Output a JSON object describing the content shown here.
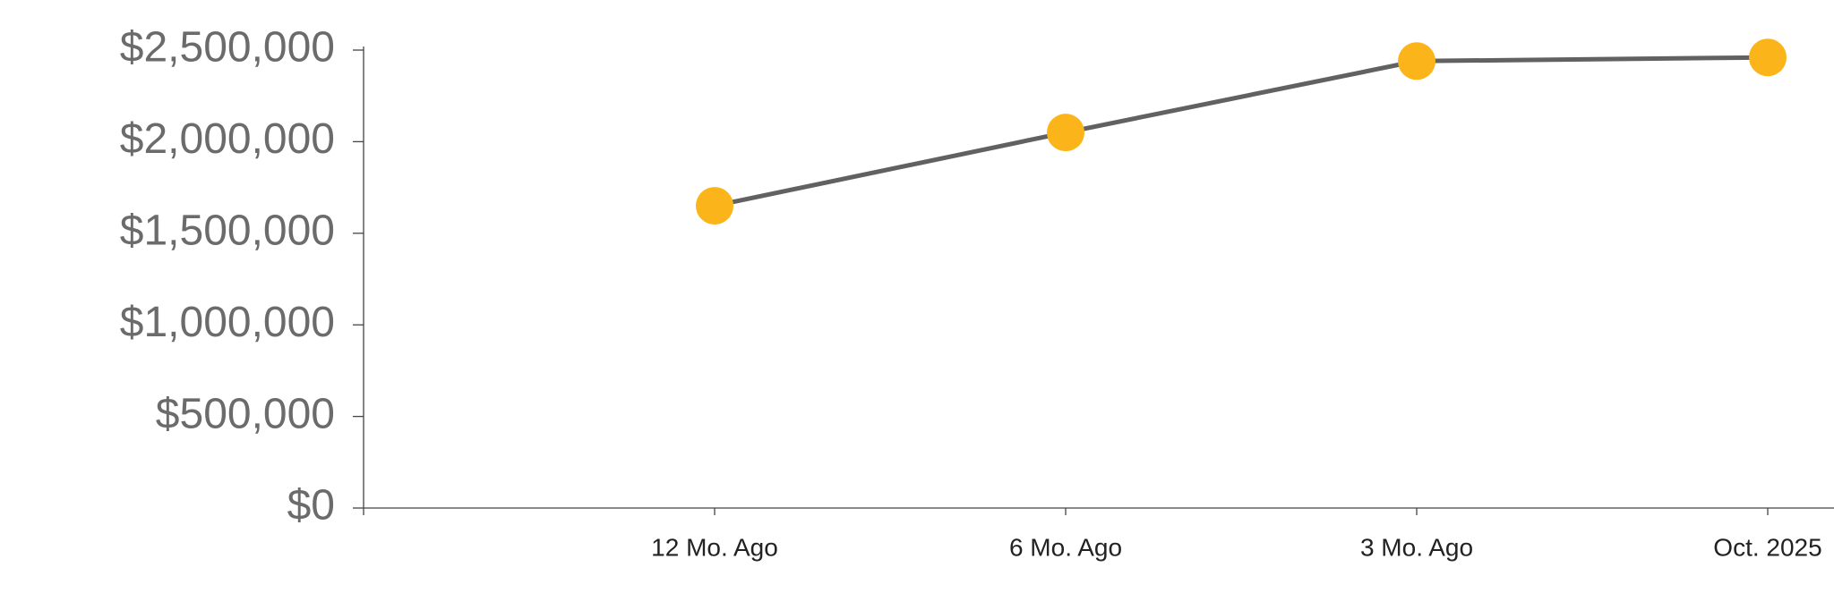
{
  "chart_data": {
    "type": "line",
    "categories": [
      null,
      "12 Mo. Ago",
      "6 Mo. Ago",
      "3 Mo. Ago",
      "Oct. 2025"
    ],
    "values": [
      null,
      1650000,
      2050000,
      2440000,
      2460000
    ],
    "color": "#fbb41a",
    "line_color": "#616161",
    "ylim": [
      0,
      2500000
    ],
    "yticks": [
      {
        "value": 0,
        "label": "$0"
      },
      {
        "value": 500000,
        "label": "$500,000"
      },
      {
        "value": 1000000,
        "label": "$1,000,000"
      },
      {
        "value": 1500000,
        "label": "$1,500,000"
      },
      {
        "value": 2000000,
        "label": "$2,000,000"
      },
      {
        "value": 2500000,
        "label": "$2,500,000"
      }
    ]
  }
}
